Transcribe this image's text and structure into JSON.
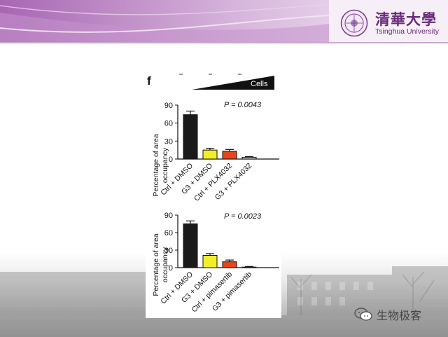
{
  "logo": {
    "name_cn": "清華大學",
    "name_en": "Tsinghua University"
  },
  "watermark": {
    "text": "生物极客",
    "icon": "wechat-icon"
  },
  "figure": {
    "panel_label": "f",
    "gradient_label": "Cells"
  },
  "colors": {
    "header_purple": "#9b5aa8",
    "header_light": "#f0e6f2",
    "bar_ctrl": "#1a1a1a",
    "bar_g3": "#f3ee2a",
    "bar_ctrl_drug": "#e8451c",
    "bar_g3_drug": "#cfcfcf"
  },
  "chart_data": [
    {
      "type": "bar",
      "title": "",
      "ylabel": [
        "Percentage of area",
        "occupancy"
      ],
      "xlabel": "",
      "ylim": [
        0,
        90
      ],
      "yticks": [
        "0",
        "30",
        "60",
        "90"
      ],
      "pvalue": "P = 0.0043",
      "categories": [
        "Ctrl + DMSO",
        "G3 + DMSO",
        "Ctrl + PLX4032",
        "G3 + PLX4032"
      ],
      "values": [
        74,
        15,
        13,
        3
      ],
      "errors": [
        6,
        3,
        3,
        1
      ],
      "colors": [
        "#1a1a1a",
        "#f3ee2a",
        "#e8451c",
        "#cfcfcf"
      ]
    },
    {
      "type": "bar",
      "title": "",
      "ylabel": [
        "Percentage of area",
        "occupancy"
      ],
      "xlabel": "",
      "ylim": [
        0,
        90
      ],
      "yticks": [
        "0",
        "30",
        "60",
        "90"
      ],
      "pvalue": "P = 0.0023",
      "categories": [
        "Ctrl + DMSO",
        "G3 + DMSO",
        "Ctrl + pimasertib",
        "G3 + pimasertib"
      ],
      "values": [
        75,
        21,
        10,
        1
      ],
      "errors": [
        5,
        3,
        3,
        1
      ],
      "colors": [
        "#1a1a1a",
        "#f3ee2a",
        "#e8451c",
        "#cfcfcf"
      ]
    }
  ]
}
